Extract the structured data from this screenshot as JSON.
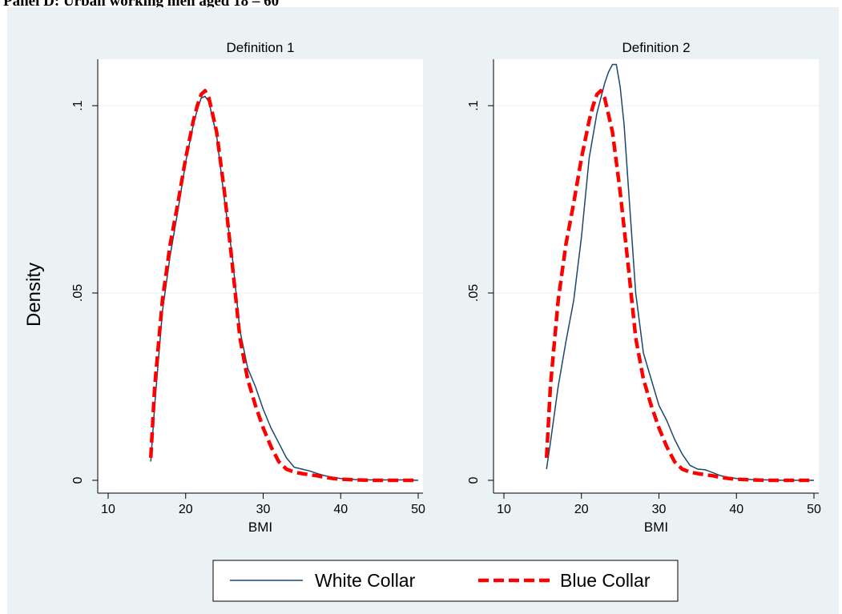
{
  "figure": {
    "panel_caption": "Panel D: Urban working men aged 18 – 60",
    "ylabel": "Density",
    "legend": {
      "placement": "bottom-center"
    }
  },
  "colors": {
    "outer_background": "#eaf2f3",
    "plot_background": "#ffffff",
    "white_collar": "#1a476f",
    "blue_collar": "#ff0000",
    "grid": "#eaf2f3"
  },
  "chart_data": [
    {
      "type": "line",
      "title": "Definition 1",
      "xlabel": "BMI",
      "ylabel": "Density",
      "xlim": [
        10,
        50
      ],
      "ylim": [
        0,
        0.11
      ],
      "xticks": [
        10,
        20,
        30,
        40,
        50
      ],
      "yticks": [
        0,
        0.05,
        0.1
      ],
      "ytick_labels": [
        "0",
        ".05",
        ".1"
      ],
      "grid": true,
      "series": [
        {
          "name": "White Collar",
          "style": "solid",
          "x": [
            15.5,
            16,
            17,
            18,
            19,
            20,
            21,
            21.5,
            22,
            22.5,
            23,
            24,
            25,
            26,
            27,
            28,
            29,
            30,
            31,
            32,
            33,
            34,
            35,
            36,
            37,
            38,
            39,
            40,
            42,
            44,
            46,
            48,
            50
          ],
          "y": [
            0.005,
            0.02,
            0.045,
            0.06,
            0.072,
            0.085,
            0.095,
            0.099,
            0.102,
            0.1025,
            0.101,
            0.092,
            0.075,
            0.06,
            0.04,
            0.03,
            0.025,
            0.019,
            0.014,
            0.01,
            0.006,
            0.0035,
            0.003,
            0.0025,
            0.0018,
            0.0012,
            0.0008,
            0.0005,
            0.0002,
            0.0001,
            0.0001,
            0.0001,
            0
          ]
        },
        {
          "name": "Blue Collar",
          "style": "dashed",
          "x": [
            15.5,
            16,
            17,
            18,
            19,
            20,
            21,
            21.5,
            22,
            22.5,
            23,
            24,
            25,
            26,
            27,
            28,
            29,
            30,
            31,
            32,
            33,
            34,
            35,
            36,
            37,
            38,
            39,
            40,
            42,
            44,
            46,
            48,
            50
          ],
          "y": [
            0.006,
            0.025,
            0.048,
            0.063,
            0.074,
            0.086,
            0.096,
            0.1,
            0.103,
            0.104,
            0.102,
            0.093,
            0.077,
            0.058,
            0.038,
            0.027,
            0.02,
            0.014,
            0.009,
            0.005,
            0.003,
            0.0022,
            0.0018,
            0.0015,
            0.0012,
            0.0008,
            0.0005,
            0.0003,
            0.0001,
            0,
            0,
            0,
            0
          ]
        }
      ]
    },
    {
      "type": "line",
      "title": "Definition 2",
      "xlabel": "BMI",
      "ylabel": "Density",
      "xlim": [
        10,
        50
      ],
      "ylim": [
        0,
        0.11
      ],
      "xticks": [
        10,
        20,
        30,
        40,
        50
      ],
      "yticks": [
        0,
        0.05,
        0.1
      ],
      "ytick_labels": [
        "0",
        ".05",
        ".1"
      ],
      "grid": true,
      "series": [
        {
          "name": "White Collar",
          "style": "solid",
          "x": [
            15.5,
            16,
            17,
            18,
            19,
            20,
            21,
            22,
            23,
            23.5,
            24,
            24.5,
            25,
            25.5,
            26,
            27,
            28,
            29,
            30,
            31,
            32,
            33,
            34,
            35,
            36,
            37,
            38,
            39,
            40,
            42,
            44,
            46,
            48,
            50
          ],
          "y": [
            0.003,
            0.01,
            0.025,
            0.037,
            0.048,
            0.065,
            0.086,
            0.098,
            0.106,
            0.109,
            0.111,
            0.111,
            0.105,
            0.095,
            0.08,
            0.05,
            0.034,
            0.027,
            0.02,
            0.016,
            0.011,
            0.007,
            0.004,
            0.003,
            0.0028,
            0.002,
            0.0012,
            0.0008,
            0.0005,
            0.0002,
            0.0001,
            0,
            0,
            0
          ]
        },
        {
          "name": "Blue Collar",
          "style": "dashed",
          "x": [
            15.5,
            16,
            17,
            18,
            19,
            20,
            21,
            21.5,
            22,
            22.5,
            23,
            24,
            25,
            26,
            27,
            28,
            29,
            30,
            31,
            32,
            33,
            34,
            35,
            36,
            37,
            38,
            39,
            40,
            42,
            44,
            46,
            48,
            50
          ],
          "y": [
            0.006,
            0.025,
            0.048,
            0.063,
            0.074,
            0.086,
            0.096,
            0.1,
            0.103,
            0.104,
            0.102,
            0.093,
            0.077,
            0.058,
            0.038,
            0.027,
            0.02,
            0.014,
            0.009,
            0.005,
            0.003,
            0.0022,
            0.0018,
            0.0015,
            0.0012,
            0.0008,
            0.0005,
            0.0003,
            0.0001,
            0,
            0,
            0,
            0
          ]
        }
      ]
    }
  ]
}
